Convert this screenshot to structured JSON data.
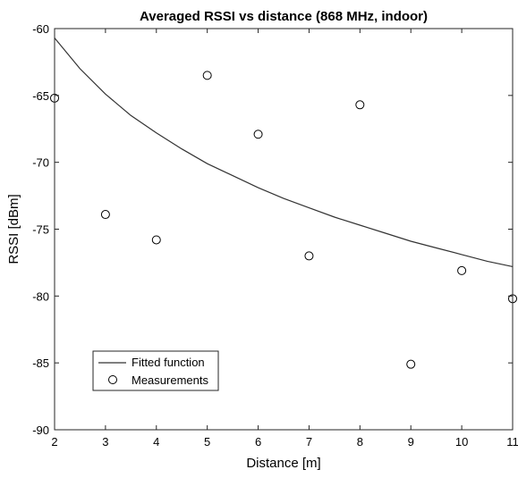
{
  "chart_data": {
    "type": "scatter",
    "title": "Averaged RSSI vs distance (868 MHz, indoor)",
    "xlabel": "Distance [m]",
    "ylabel": "RSSI [dBm]",
    "xlim": [
      2,
      11
    ],
    "ylim": [
      -90,
      -60
    ],
    "xticks": [
      2,
      3,
      4,
      5,
      6,
      7,
      8,
      9,
      10,
      11
    ],
    "yticks": [
      -90,
      -85,
      -80,
      -75,
      -70,
      -65,
      -60
    ],
    "grid": false,
    "legend_position": "bottom-left",
    "series": [
      {
        "name": "Fitted function",
        "kind": "line",
        "color": "#333333",
        "x": [
          2,
          2.5,
          3,
          3.5,
          4,
          4.5,
          5,
          5.5,
          6,
          6.5,
          7,
          7.5,
          8,
          8.5,
          9,
          9.5,
          10,
          10.5,
          11
        ],
        "y": [
          -60.7,
          -63.0,
          -64.9,
          -66.5,
          -67.8,
          -69.0,
          -70.1,
          -71.0,
          -71.9,
          -72.7,
          -73.4,
          -74.1,
          -74.7,
          -75.3,
          -75.9,
          -76.4,
          -76.9,
          -77.4,
          -77.8
        ]
      },
      {
        "name": "Measurements",
        "kind": "scatter",
        "marker": "circle-open",
        "color": "#000000",
        "x": [
          2,
          3,
          4,
          5,
          6,
          7,
          8,
          9,
          10,
          11
        ],
        "y": [
          -65.2,
          -73.9,
          -75.8,
          -63.5,
          -67.9,
          -77.0,
          -65.7,
          -85.1,
          -78.1,
          -80.2
        ]
      }
    ]
  }
}
